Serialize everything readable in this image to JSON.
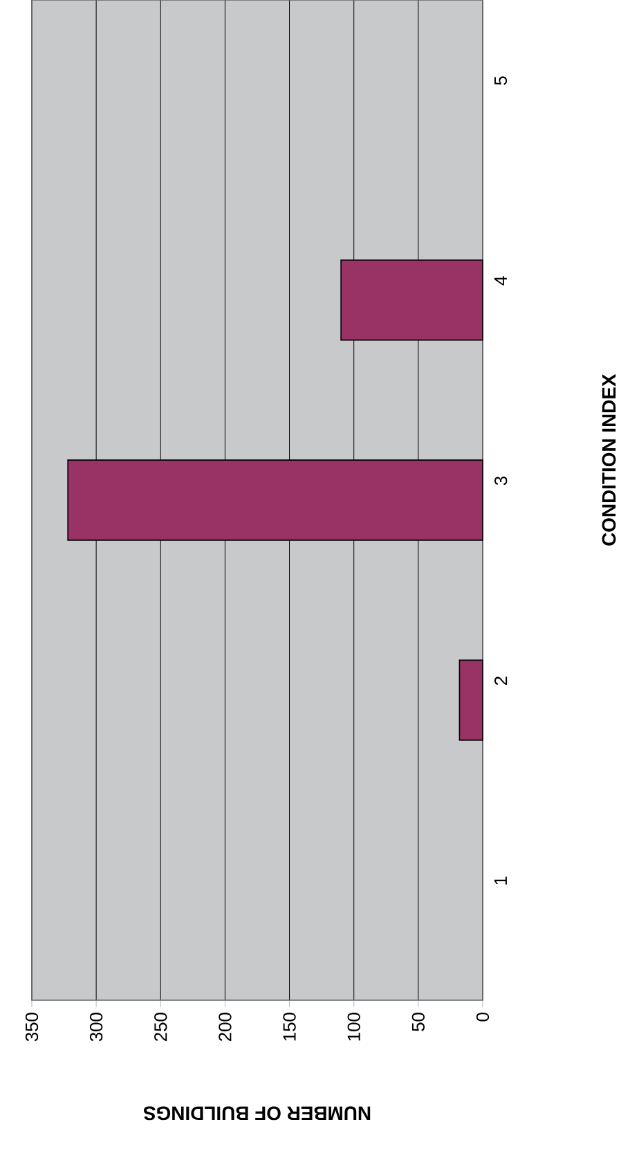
{
  "chart_data": {
    "type": "bar",
    "orientation": "horizontal",
    "xlabel": "NUMBER OF BUILDINGS",
    "ylabel": "CONDITION INDEX",
    "categories": [
      "5",
      "4",
      "3",
      "2",
      "1"
    ],
    "values": [
      null,
      110,
      322,
      18,
      null
    ],
    "color": "#993366",
    "xlim": [
      350,
      0
    ],
    "xticks": [
      350,
      300,
      250,
      200,
      150,
      100,
      50,
      0
    ],
    "grid": "x"
  }
}
